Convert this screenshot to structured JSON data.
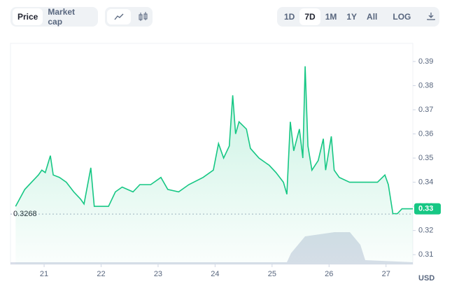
{
  "toolbar": {
    "view_tabs": [
      "Price",
      "Market cap"
    ],
    "ranges": [
      "1D",
      "7D",
      "1M",
      "1Y",
      "All"
    ],
    "active_range": "7D",
    "log": "LOG"
  },
  "chart_data": {
    "type": "line",
    "x": [
      20.5,
      20.66,
      20.78,
      20.9,
      20.96,
      21.02,
      21.11,
      21.16,
      21.27,
      21.39,
      21.52,
      21.64,
      21.7,
      21.82,
      21.88,
      22.13,
      22.25,
      22.37,
      22.56,
      22.68,
      22.87,
      23.05,
      23.17,
      23.36,
      23.54,
      23.79,
      23.97,
      24.06,
      24.15,
      24.25,
      24.31,
      24.36,
      24.42,
      24.55,
      24.62,
      24.77,
      24.95,
      25.07,
      25.2,
      25.26,
      25.32,
      25.38,
      25.48,
      25.54,
      25.58,
      25.63,
      25.7,
      25.81,
      25.9,
      25.94,
      26.04,
      26.09,
      26.18,
      26.36,
      26.61,
      26.85,
      26.98,
      27.04,
      27.12,
      27.2,
      27.28,
      27.47
    ],
    "series": [
      {
        "color": "#16c784",
        "values": [
          0.33,
          0.337,
          0.34,
          0.343,
          0.345,
          0.344,
          0.351,
          0.343,
          0.342,
          0.34,
          0.336,
          0.333,
          0.331,
          0.346,
          0.33,
          0.33,
          0.336,
          0.338,
          0.336,
          0.339,
          0.339,
          0.342,
          0.337,
          0.336,
          0.339,
          0.342,
          0.345,
          0.356,
          0.35,
          0.355,
          0.376,
          0.36,
          0.365,
          0.362,
          0.354,
          0.35,
          0.347,
          0.344,
          0.34,
          0.335,
          0.365,
          0.353,
          0.362,
          0.35,
          0.388,
          0.355,
          0.345,
          0.349,
          0.358,
          0.345,
          0.359,
          0.345,
          0.342,
          0.34,
          0.34,
          0.34,
          0.343,
          0.339,
          0.327,
          0.327,
          0.329,
          0.329
        ]
      }
    ],
    "xlim": [
      20.41,
      27.47
    ],
    "xticks": [
      21,
      22,
      23,
      24,
      25,
      26,
      27
    ],
    "ylim": [
      0.306,
      0.3975
    ],
    "yticks": [
      0.31,
      0.32,
      0.33,
      0.34,
      0.35,
      0.36,
      0.37,
      0.38,
      0.39
    ],
    "reference_value": 0.3268,
    "price_tag": {
      "value": 0.329,
      "label": "0.33"
    },
    "y_unit": "USD"
  }
}
